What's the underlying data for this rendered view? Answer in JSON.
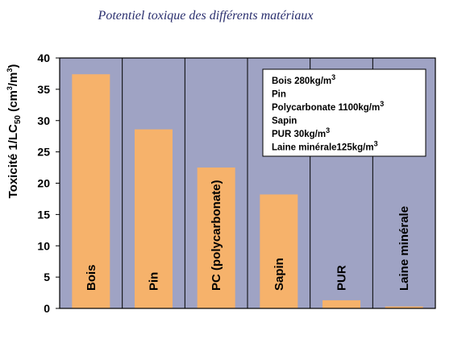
{
  "chart_data": {
    "type": "bar",
    "title": "Potentiel toxique des différents matériaux",
    "ylabel": {
      "prefix": "Toxicité 1/LC",
      "sub": "50",
      "unit_open": " (cm",
      "sup1": "3",
      "unit_mid": "/m",
      "sup2": "3",
      "unit_close": ")"
    },
    "ylim": [
      0,
      40
    ],
    "yticks": [
      "0",
      "5",
      "10",
      "15",
      "20",
      "25",
      "30",
      "35",
      "40"
    ],
    "ytick_values": [
      0,
      5,
      10,
      15,
      20,
      25,
      30,
      35,
      40
    ],
    "categories": [
      "Bois",
      "Pin",
      "PC (polycarbonate)",
      "Sapin",
      "PUR",
      "Laine minérale"
    ],
    "values": [
      37.4,
      28.6,
      22.5,
      18.2,
      1.3,
      0.3
    ],
    "legend": [
      {
        "text": "Bois 280kg/m",
        "sup": "3"
      },
      {
        "text": "Pin",
        "sup": ""
      },
      {
        "text": "Polycarbonate 1100kg/m",
        "sup": "3"
      },
      {
        "text": "Sapin",
        "sup": ""
      },
      {
        "text": "PUR 30kg/m",
        "sup": "3"
      },
      {
        "text": "Laine minérale125kg/m",
        "sup": "3"
      }
    ],
    "colors": {
      "plot_bg": "#9fa3c4",
      "bar": "#f6b26b",
      "legend_bg": "#ffffff",
      "title": "#2a2f6e"
    }
  }
}
